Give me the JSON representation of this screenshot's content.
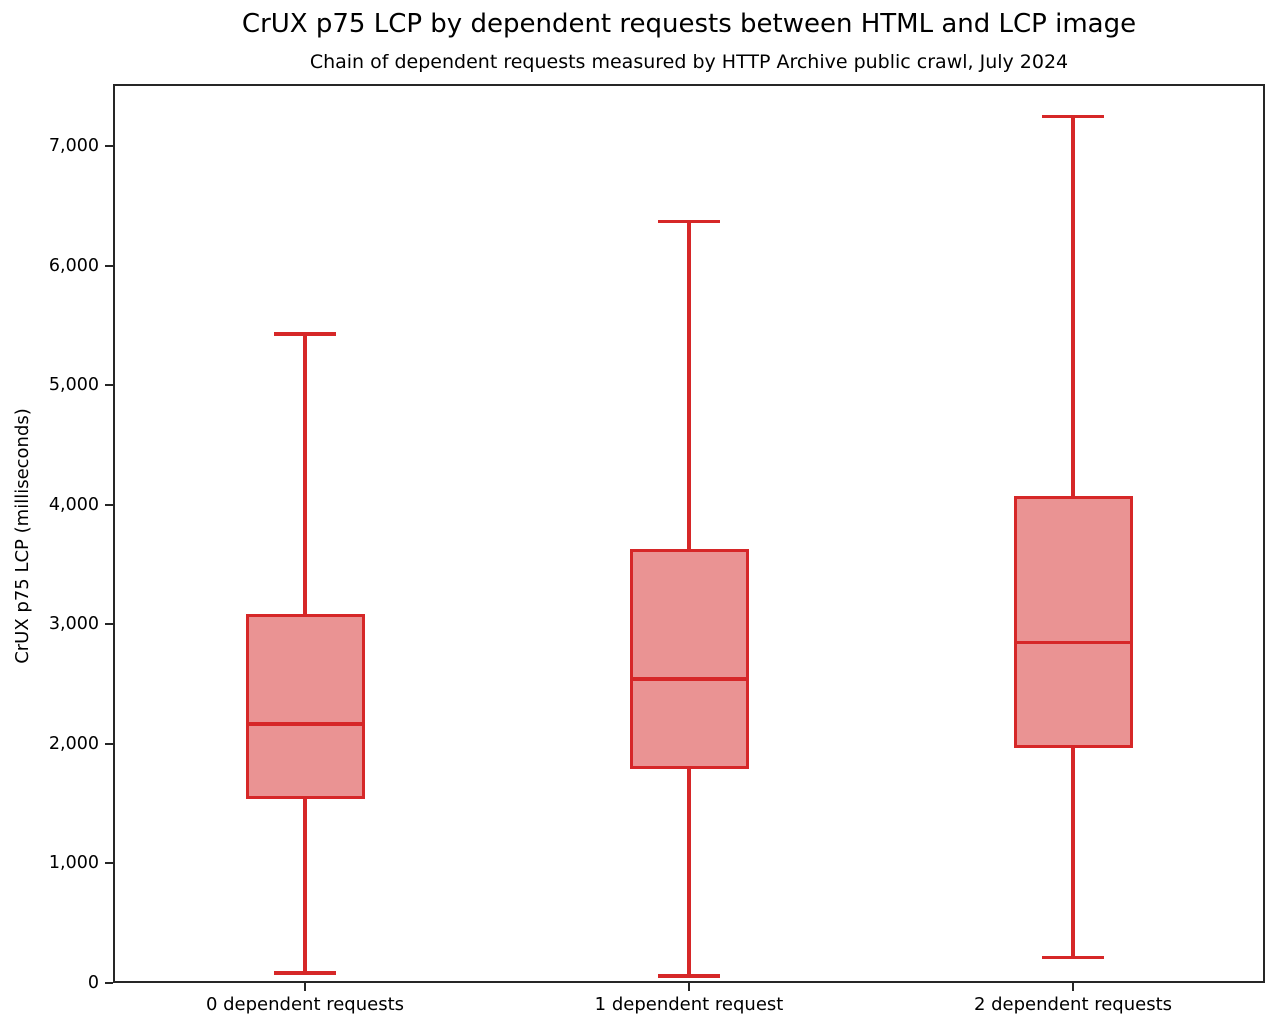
{
  "chart_data": {
    "type": "boxplot",
    "title": "CrUX p75 LCP by dependent requests between HTML and LCP image",
    "subtitle": "Chain of dependent requests measured by HTTP Archive public crawl, July 2024",
    "ylabel": "CrUX p75 LCP (milliseconds)",
    "xlabel": "",
    "categories": [
      "0 dependent requests",
      "1 dependent request",
      "2 dependent requests"
    ],
    "series": [
      {
        "label": "0 dependent requests",
        "whisker_low": 85,
        "q1": 1540,
        "median": 2165,
        "q3": 3090,
        "whisker_high": 5430
      },
      {
        "label": "1 dependent request",
        "whisker_low": 60,
        "q1": 1790,
        "median": 2545,
        "q3": 3630,
        "whisker_high": 6370
      },
      {
        "label": "2 dependent requests",
        "whisker_low": 215,
        "q1": 1965,
        "median": 2850,
        "q3": 4070,
        "whisker_high": 7250
      }
    ],
    "yticks": [
      {
        "value": 0,
        "label": "0"
      },
      {
        "value": 1000,
        "label": "1,000"
      },
      {
        "value": 2000,
        "label": "2,000"
      },
      {
        "value": 3000,
        "label": "3,000"
      },
      {
        "value": 4000,
        "label": "4,000"
      },
      {
        "value": 5000,
        "label": "5,000"
      },
      {
        "value": 6000,
        "label": "6,000"
      },
      {
        "value": 7000,
        "label": "7,000"
      }
    ],
    "ylim": [
      0,
      7520
    ],
    "grid": false,
    "legend": null,
    "colors": {
      "box_fill": "#ea9393",
      "box_edge": "#d62728",
      "axis": "#262626",
      "text": "#000000"
    }
  }
}
